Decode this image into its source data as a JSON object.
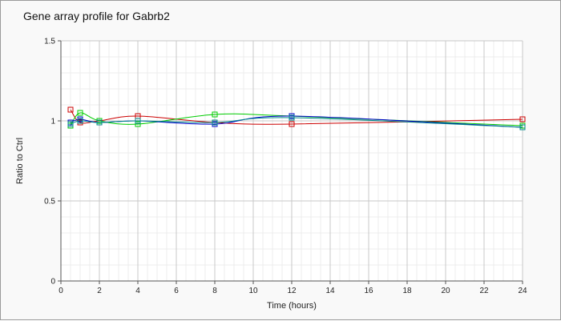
{
  "chart_data": {
    "type": "line",
    "title": "Gene array profile for Gabrb2",
    "xlabel": "Time (hours)",
    "ylabel": "Ratio to Ctrl",
    "xlim": [
      0,
      24
    ],
    "ylim": [
      0,
      1.5
    ],
    "x_ticks": [
      "0",
      "2",
      "4",
      "6",
      "8",
      "10",
      "12",
      "14",
      "16",
      "18",
      "20",
      "22",
      "24"
    ],
    "y_ticks": [
      "0",
      "0.5",
      "1",
      "1.5"
    ],
    "grid": true,
    "legend": "none",
    "series": [
      {
        "color": "#cc0000",
        "x": [
          0.5,
          1,
          2,
          4,
          8,
          12,
          24
        ],
        "y": [
          1.07,
          0.99,
          1.0,
          1.03,
          0.99,
          0.98,
          1.01
        ]
      },
      {
        "color": "#00cc00",
        "x": [
          0.5,
          1,
          2,
          4,
          8,
          12,
          24
        ],
        "y": [
          0.97,
          1.05,
          1.0,
          0.98,
          1.04,
          1.03,
          0.97
        ]
      },
      {
        "color": "#0000cc",
        "x": [
          0.5,
          1,
          2,
          4,
          8,
          12,
          24
        ],
        "y": [
          0.99,
          1.01,
          0.99,
          1.0,
          0.98,
          1.03,
          0.96
        ]
      },
      {
        "color": "#008888",
        "x": [
          0.5,
          1,
          2,
          4,
          8,
          12,
          24
        ],
        "y": [
          0.98,
          1.0,
          0.99,
          1.0,
          0.99,
          1.02,
          0.96
        ]
      }
    ]
  }
}
